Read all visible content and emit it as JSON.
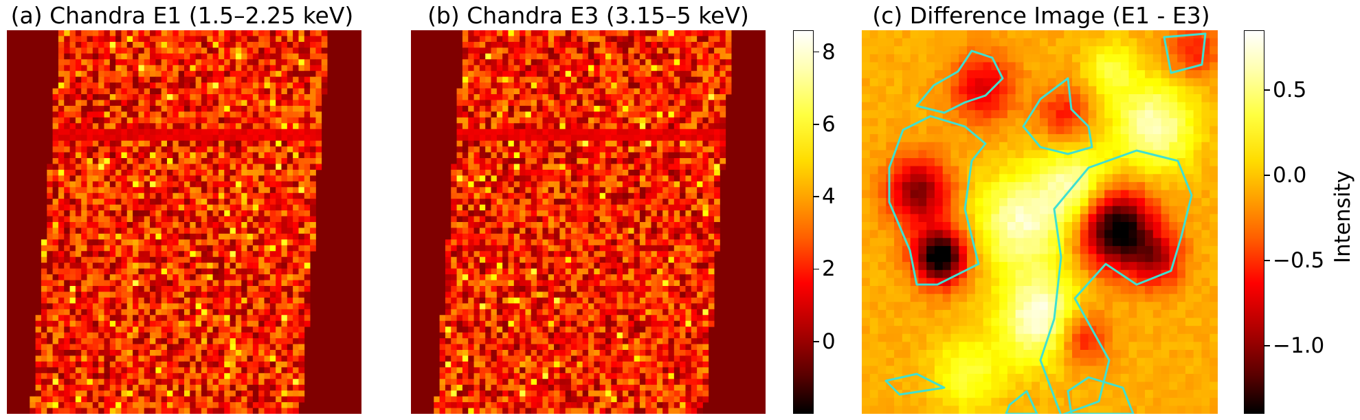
{
  "chart_data": [
    {
      "type": "heatmap",
      "title": "(a) Chandra E1 (1.5–2.25 keV)",
      "colormap": "hot",
      "shares_colorbar_with": "(b)"
    },
    {
      "type": "heatmap",
      "title": "(b) Chandra E3 (3.15–5 keV)",
      "colormap": "hot",
      "colorbar": {
        "ticks": [
          0,
          2,
          4,
          6,
          8
        ],
        "range": [
          -2,
          8.6
        ]
      }
    },
    {
      "type": "heatmap",
      "title": "(c) Difference Image (E1 - E3)",
      "colormap": "hot",
      "contour_color": "#40e0d0",
      "colorbar": {
        "ticks": [
          "0.5",
          "0.0",
          "−0.5",
          "−1.0"
        ],
        "tick_values": [
          0.5,
          0.0,
          -0.5,
          -1.0
        ],
        "range": [
          -1.4,
          0.85
        ],
        "label": "Intensity"
      }
    }
  ]
}
